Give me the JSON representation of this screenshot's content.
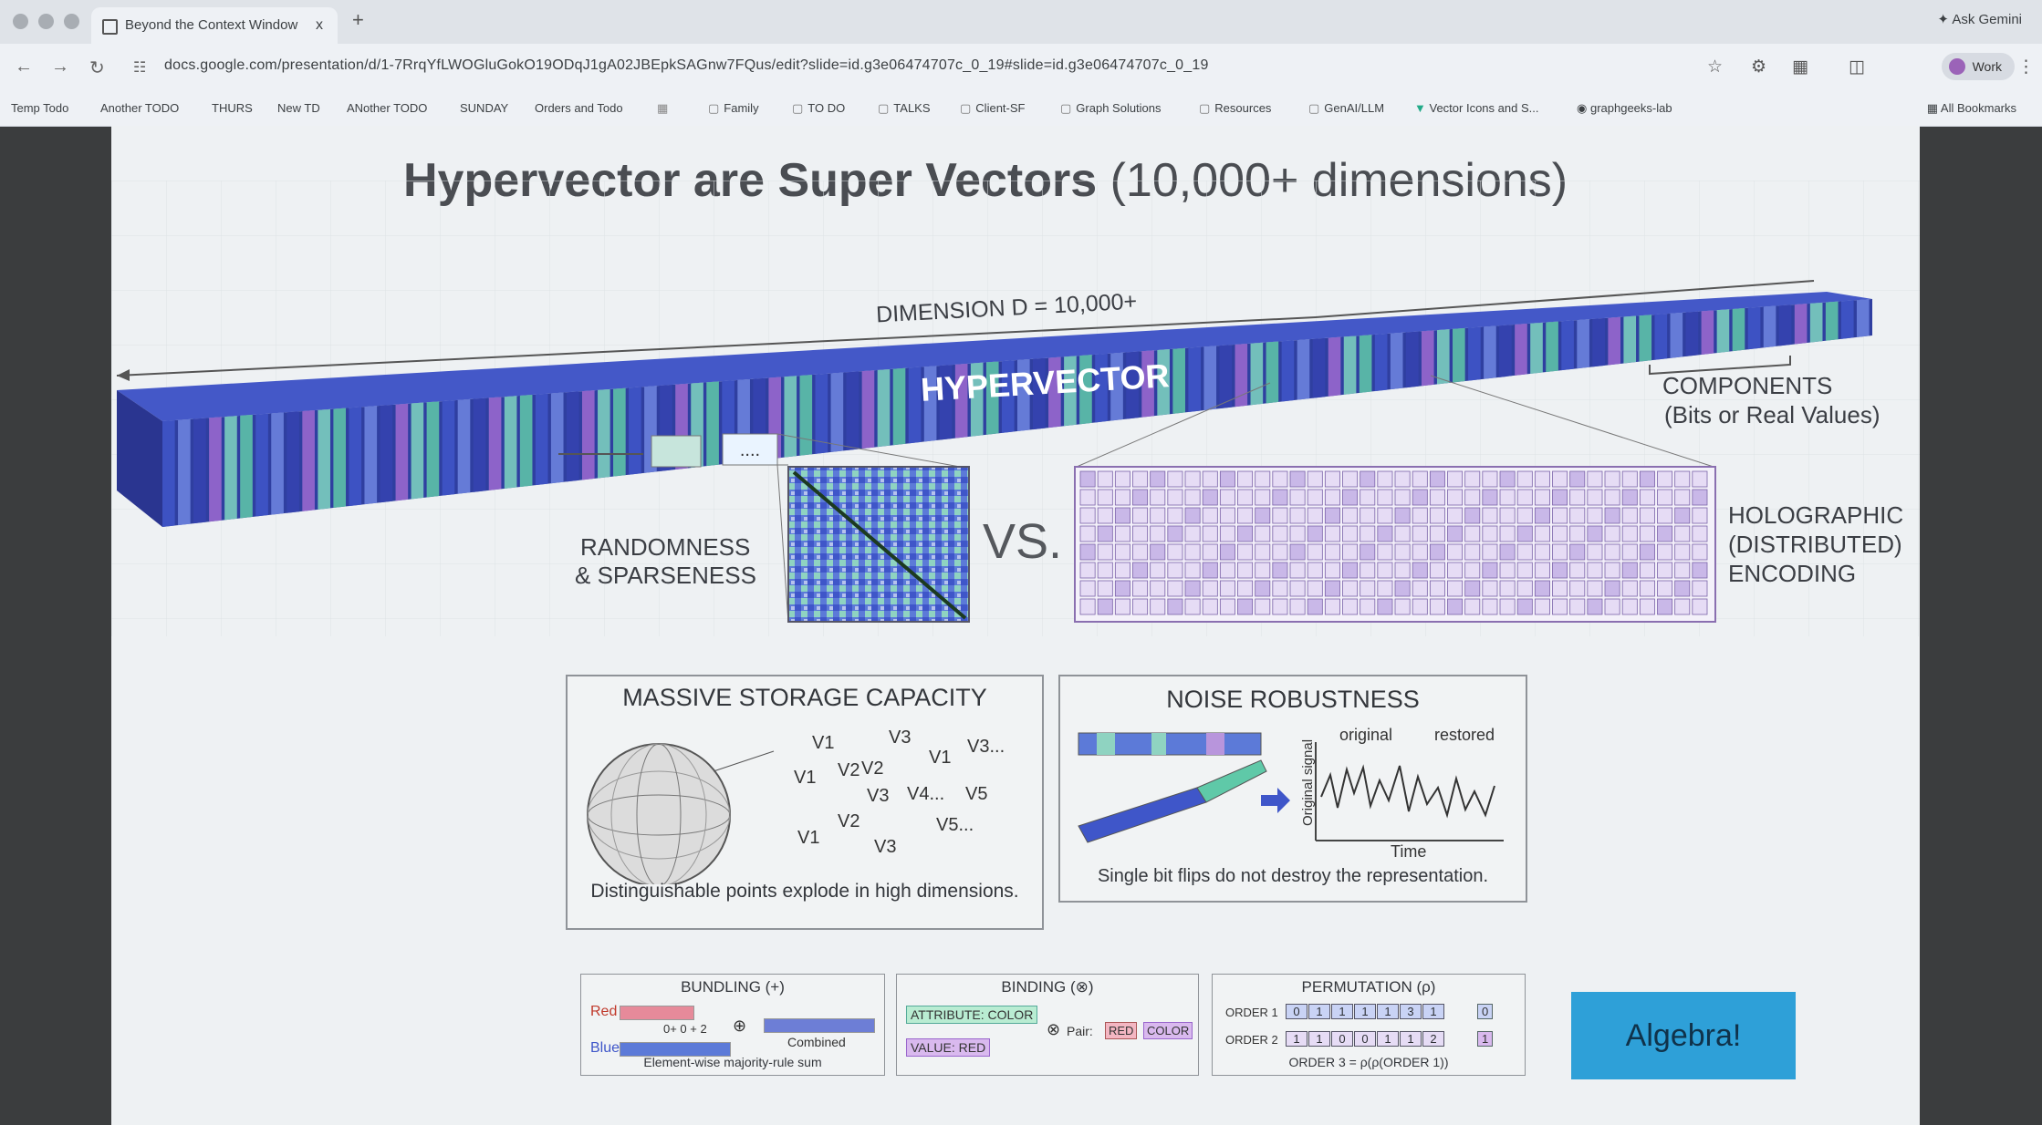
{
  "browser": {
    "tab_title": "Beyond the Context Window",
    "tab_close": "x",
    "new_tab": "+",
    "ask_gemini": "Ask Gemini",
    "url": "docs.google.com/presentation/d/1-7RrqYfLWOGluGokO19ODqJ1gA02JBEpkSAGnw7FQus/edit?slide=id.g3e06474707c_0_19#slide=id.g3e06474707c_0_19",
    "profile": "Work",
    "bookmarks": [
      "Temp Todo",
      "Another TODO",
      "THURS",
      "New TD",
      "ANother TODO",
      "SUNDAY",
      "Orders and Todo"
    ],
    "bookmark_folders": [
      "Family",
      "TO DO",
      "TALKS",
      "Client-SF",
      "Graph Solutions",
      "Resources",
      "GenAI/LLM"
    ],
    "bookmark_links": [
      "Vector Icons and S...",
      "graphgeeks-lab"
    ],
    "all_bookmarks": "All Bookmarks"
  },
  "slide": {
    "title_main": "Hypervector are Super Vectors",
    "title_sub": " (10,000+ dimensions)",
    "dimension_label": "DIMENSION D = 10,000+",
    "hypervector_label": "HYPERVECTOR",
    "components_label": "COMPONENTS",
    "components_sub": "(Bits or Real Values)",
    "randomness_line1": "RANDOMNESS",
    "randomness_line2": "& SPARSENESS",
    "ellipsis": "....",
    "vs": "VS.",
    "holographic_line1": "HOLOGRAPHIC",
    "holographic_line2": "(DISTRIBUTED)",
    "holographic_line3": "ENCODING",
    "storage": {
      "title": "MASSIVE STORAGE CAPACITY",
      "caption": "Distinguishable points explode in high dimensions.",
      "points": [
        "V1",
        "V2",
        "V3",
        "V1",
        "V3...",
        "V1",
        "V2",
        "V3",
        "V4...",
        "V5",
        "V2",
        "V1",
        "V3",
        "V5..."
      ]
    },
    "noise": {
      "title": "NOISE ROBUSTNESS",
      "original": "original",
      "restored": "restored",
      "y_label": "Original signal",
      "x_label": "Time",
      "caption": "Single bit flips do not destroy the representation."
    },
    "bundling": {
      "title": "BUNDLING (+)",
      "red": "Red",
      "blue": "Blue",
      "sum": "0+ 0 + 2",
      "combined": "Combined",
      "caption": "Element-wise majority-rule sum"
    },
    "binding": {
      "title": "BINDING (⊗)",
      "attribute": "ATTRIBUTE: COLOR",
      "value": "VALUE: RED",
      "pair": "Pair:",
      "pair_red": "RED",
      "pair_color": "COLOR"
    },
    "permutation": {
      "title": "PERMUTATION (ρ)",
      "order1": "ORDER 1",
      "order1_bits": [
        "0",
        "1",
        "1",
        "1",
        "1",
        "3",
        "1"
      ],
      "order1_end": "0",
      "order2": "ORDER 2",
      "order2_bits": [
        "1",
        "1",
        "0",
        "0",
        "1",
        "1",
        "2"
      ],
      "order2_end": "1",
      "order3": "ORDER 3 = ρ(ρ(ORDER 1))"
    },
    "algebra": "Algebra!"
  },
  "colors": {
    "slide_bg": "#eef1f3",
    "accent": "#2ea0d8",
    "bar_blue": "#3f56c9",
    "bar_teal": "#5fc9a8",
    "bar_purple": "#9d6ad0"
  }
}
